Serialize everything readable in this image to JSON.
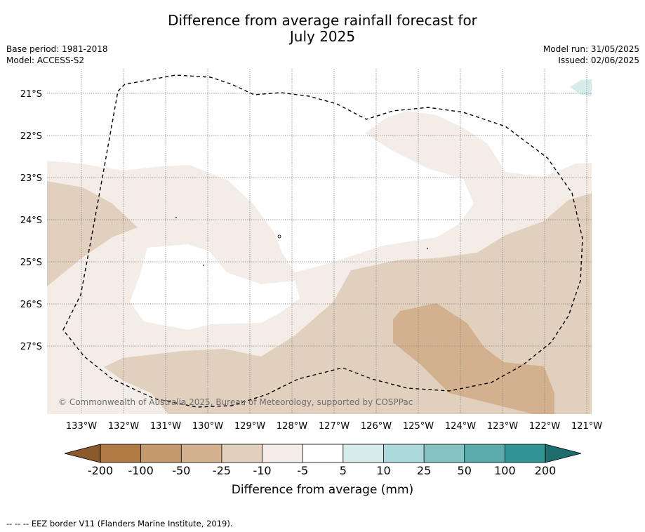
{
  "title_line1": "Difference from average rainfall forecast for",
  "title_line2": "July 2025",
  "base_period": "Base period: 1981-2018",
  "model": "Model: ACCESS-S2",
  "model_run": "Model run: 31/05/2025",
  "issued": "Issued: 02/06/2025",
  "copyright": "© Commonwealth of Australia 2025, Bureau of Meteorology, supported by COSPPac",
  "lat_labels": [
    "21°S",
    "22°S",
    "23°S",
    "24°S",
    "25°S",
    "26°S",
    "27°S"
  ],
  "lon_labels": [
    "133°W",
    "132°W",
    "131°W",
    "130°W",
    "129°W",
    "128°W",
    "127°W",
    "126°W",
    "125°W",
    "124°W",
    "123°W",
    "122°W",
    "121°W"
  ],
  "colorbar": {
    "ticks": [
      "-200",
      "-100",
      "-50",
      "-25",
      "-10",
      "-5",
      "5",
      "10",
      "25",
      "50",
      "100",
      "200"
    ],
    "colors": [
      "#8c5a2a",
      "#b07a45",
      "#c39a6d",
      "#d3b08e",
      "#e2d0be",
      "#f4ede7",
      "#ffffff",
      "#d5ecea",
      "#acdada",
      "#84c3c2",
      "#5aabab",
      "#329494",
      "#1f6e6e"
    ],
    "label": "Difference from average (mm)"
  },
  "footnote": "--  --  -- EEZ border V11 (Flanders Marine Institute, 2019)."
}
